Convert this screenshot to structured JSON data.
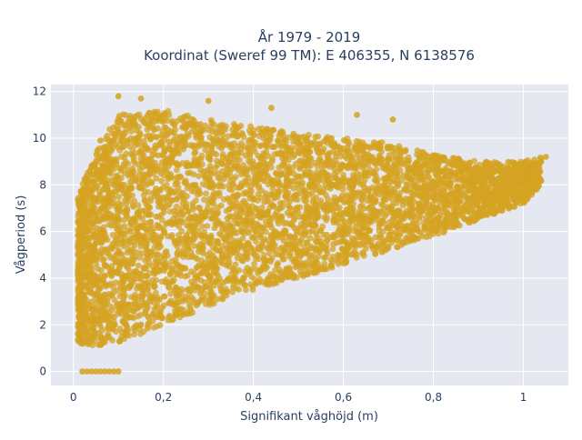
{
  "chart_data": {
    "type": "scatter",
    "title": [
      "År 1979 - 2019",
      "Koordinat (Sweref 99 TM): E 406355, N 6138576"
    ],
    "xlabel": "Signifikant våghöjd (m)",
    "ylabel": "Vågperiod (s)",
    "xlim": [
      -0.05,
      1.1
    ],
    "ylim": [
      -0.6,
      12.3
    ],
    "x_ticks": [
      0,
      0.2,
      0.4,
      0.6,
      0.8,
      1
    ],
    "x_tick_labels": [
      "0",
      "0,2",
      "0,4",
      "0,6",
      "0,8",
      "1"
    ],
    "y_ticks": [
      0,
      2,
      4,
      6,
      8,
      10,
      12
    ],
    "y_tick_labels": [
      "0",
      "2",
      "4",
      "6",
      "8",
      "10",
      "12"
    ],
    "grid": true,
    "legend": "none",
    "colors": {
      "marker": "#d4a321",
      "plot_bg": "#e5e8f0",
      "grid": "#ffffff",
      "text": "#2a3f5f"
    },
    "envelope": {
      "description_points": "dense cloud; upper and lower bounds of data in data units",
      "x": [
        0.01,
        0.05,
        0.1,
        0.2,
        0.3,
        0.4,
        0.5,
        0.6,
        0.7,
        0.8,
        0.9,
        1.0,
        1.04
      ],
      "y_upper": [
        7.5,
        9.5,
        11.0,
        11.2,
        10.8,
        10.5,
        10.2,
        10.0,
        9.8,
        9.3,
        9.0,
        9.0,
        9.2
      ],
      "y_lower": [
        1.2,
        1.1,
        1.2,
        2.0,
        2.8,
        3.5,
        4.0,
        4.6,
        5.2,
        5.8,
        6.5,
        7.2,
        8.0
      ]
    },
    "zero_points": {
      "x": [
        0.02,
        0.03,
        0.04,
        0.05,
        0.06,
        0.07,
        0.08,
        0.09,
        0.1
      ],
      "y": 0
    },
    "outliers": [
      {
        "x": 0.1,
        "y": 11.8
      },
      {
        "x": 0.15,
        "y": 11.7
      },
      {
        "x": 0.3,
        "y": 11.6
      },
      {
        "x": 0.44,
        "y": 11.3
      },
      {
        "x": 0.06,
        "y": 9.9
      },
      {
        "x": 1.05,
        "y": 9.2
      },
      {
        "x": 0.63,
        "y": 11.0
      },
      {
        "x": 0.71,
        "y": 10.8
      }
    ]
  }
}
